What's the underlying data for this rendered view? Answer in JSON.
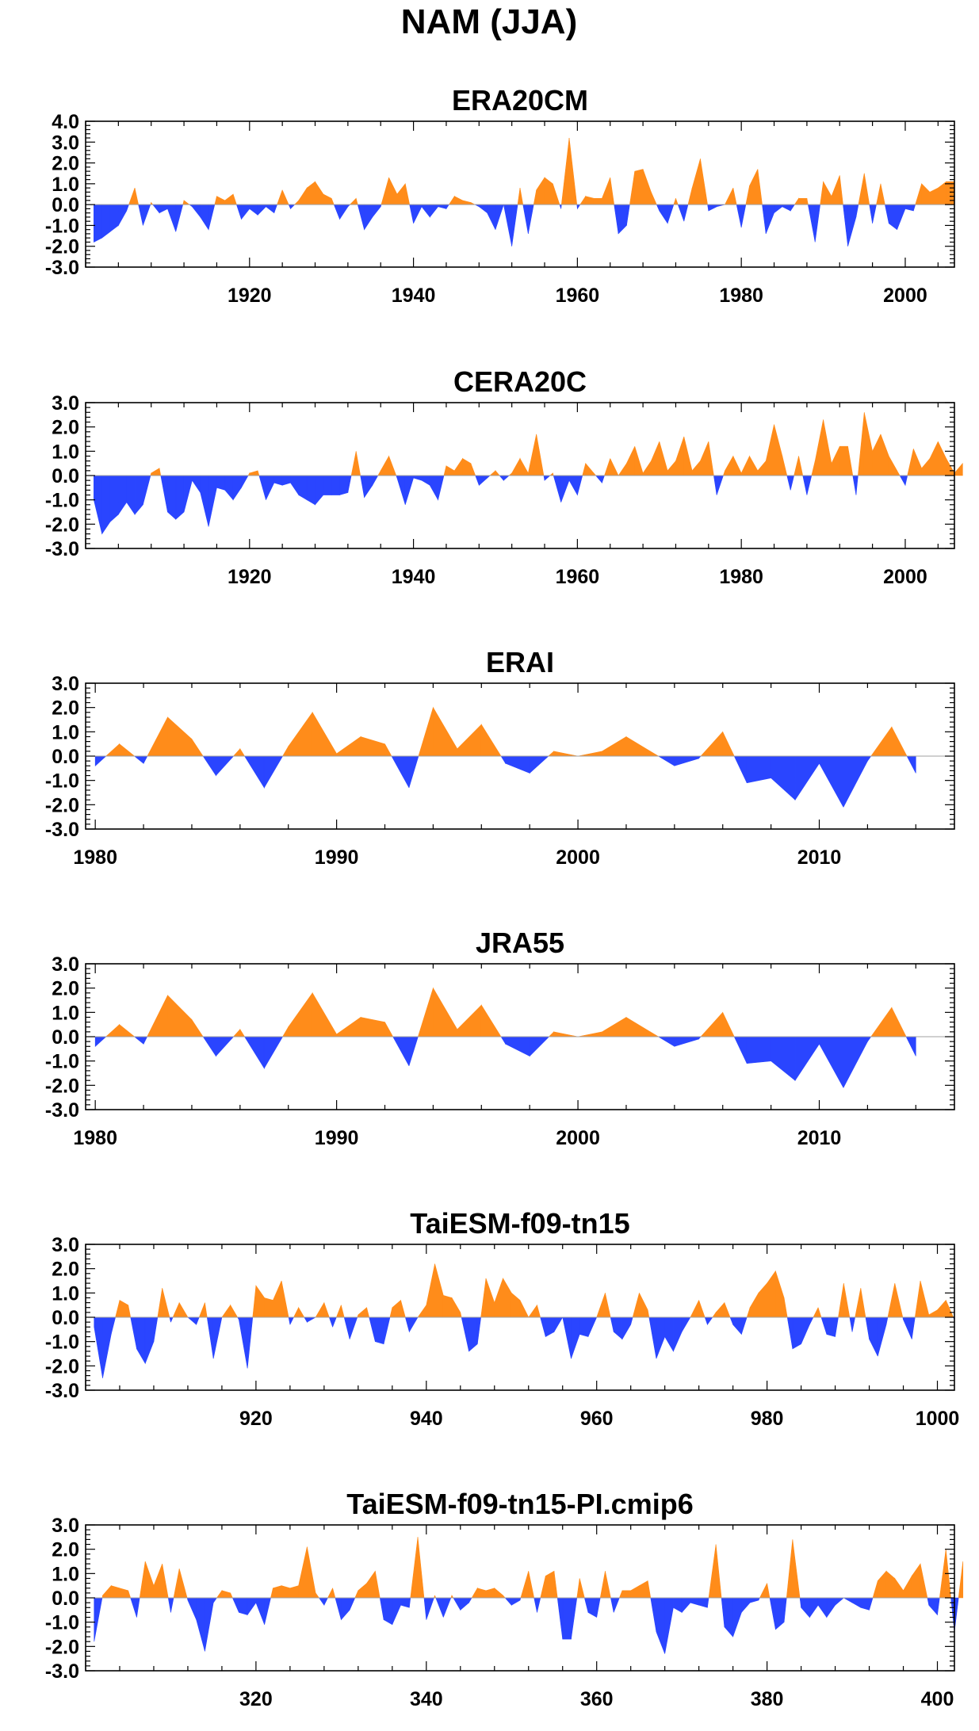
{
  "figure_title": "NAM (JJA)",
  "colors": {
    "positive": "#ff8c1a",
    "negative": "#2a45ff",
    "axis": "#000000"
  },
  "chart_data": [
    {
      "type": "area",
      "title": "ERA20CM",
      "xlabel": "",
      "ylabel": "",
      "xlim": [
        1900,
        2006
      ],
      "ylim": [
        -3.0,
        4.0
      ],
      "yticks": [
        -3.0,
        -2.0,
        -1.0,
        0.0,
        1.0,
        2.0,
        3.0,
        4.0
      ],
      "ytick_labels": [
        "-3.0",
        "-2.0",
        "-1.0",
        "0.0",
        "1.0",
        "2.0",
        "3.0",
        "4.0"
      ],
      "xticks": [
        1920,
        1940,
        1960,
        1980,
        2000
      ],
      "xtick_labels": [
        "1920",
        "1940",
        "1960",
        "1980",
        "2000"
      ],
      "x_start": 1901,
      "values": [
        -1.8,
        -1.6,
        -1.3,
        -1.0,
        -0.3,
        0.8,
        -1.0,
        0.1,
        -0.4,
        -0.2,
        -1.3,
        0.2,
        -0.1,
        -0.6,
        -1.2,
        0.4,
        0.2,
        0.5,
        -0.7,
        -0.2,
        -0.5,
        -0.1,
        -0.4,
        0.7,
        -0.2,
        0.2,
        0.8,
        1.1,
        0.5,
        0.3,
        -0.7,
        -0.1,
        0.3,
        -1.2,
        -0.6,
        -0.1,
        1.3,
        0.5,
        1.0,
        -0.9,
        -0.1,
        -0.6,
        -0.1,
        -0.2,
        0.4,
        0.2,
        0.1,
        -0.1,
        -0.4,
        -1.2,
        0.0,
        -2.0,
        0.8,
        -1.4,
        0.7,
        1.3,
        1.0,
        -0.2,
        3.2,
        -0.2,
        0.4,
        0.3,
        0.3,
        1.3,
        -1.4,
        -1.0,
        1.6,
        1.7,
        0.6,
        -0.3,
        -0.9,
        0.3,
        -0.8,
        0.8,
        2.2,
        -0.3,
        -0.1,
        0.0,
        0.8,
        -1.1,
        0.9,
        1.7,
        -1.4,
        -0.4,
        -0.1,
        -0.3,
        0.3,
        0.3,
        -1.8,
        1.1,
        0.4,
        1.4,
        -2.0,
        -0.6,
        1.5,
        -0.9,
        1.0,
        -0.9,
        -1.2,
        -0.2,
        -0.3,
        1.0,
        0.6,
        0.8,
        1.1,
        1.1
      ]
    },
    {
      "type": "area",
      "title": "CERA20C",
      "xlabel": "",
      "ylabel": "",
      "xlim": [
        1900,
        2006
      ],
      "ylim": [
        -3.0,
        3.0
      ],
      "yticks": [
        -3.0,
        -2.0,
        -1.0,
        0.0,
        1.0,
        2.0,
        3.0
      ],
      "ytick_labels": [
        "-3.0",
        "-2.0",
        "-1.0",
        "0.0",
        "1.0",
        "2.0",
        "3.0"
      ],
      "xticks": [
        1920,
        1940,
        1960,
        1980,
        2000
      ],
      "xtick_labels": [
        "1920",
        "1940",
        "1960",
        "1980",
        "2000"
      ],
      "x_start": 1901,
      "values": [
        -1.0,
        -2.4,
        -1.9,
        -1.6,
        -1.1,
        -1.6,
        -1.2,
        0.1,
        0.3,
        -1.5,
        -1.8,
        -1.5,
        -0.2,
        -0.7,
        -2.1,
        -0.5,
        -0.6,
        -1.0,
        -0.5,
        0.1,
        0.2,
        -1.0,
        -0.3,
        -0.4,
        -0.3,
        -0.8,
        -1.0,
        -1.2,
        -0.8,
        -0.8,
        -0.8,
        -0.7,
        1.0,
        -0.9,
        -0.4,
        0.2,
        0.8,
        -0.1,
        -1.2,
        -0.1,
        -0.2,
        -0.4,
        -1.0,
        0.4,
        0.2,
        0.7,
        0.5,
        -0.4,
        -0.1,
        0.2,
        -0.2,
        0.1,
        0.7,
        0.1,
        1.7,
        -0.2,
        0.1,
        -1.1,
        -0.2,
        -0.8,
        0.5,
        0.1,
        -0.3,
        0.7,
        0.0,
        0.5,
        1.2,
        0.1,
        0.6,
        1.4,
        0.2,
        0.6,
        1.6,
        0.2,
        0.6,
        1.4,
        -0.8,
        0.2,
        0.8,
        0.1,
        0.8,
        0.2,
        0.6,
        2.1,
        0.8,
        -0.6,
        0.8,
        -0.8,
        0.6,
        2.3,
        0.5,
        1.2,
        1.2,
        -0.8,
        2.6,
        1.0,
        1.7,
        0.8,
        0.2,
        -0.4,
        1.1,
        0.3,
        0.7,
        1.4,
        0.7,
        0.1,
        0.5
      ]
    },
    {
      "type": "area",
      "title": "ERAI",
      "xlabel": "",
      "ylabel": "",
      "xlim": [
        1979.6,
        2015.6
      ],
      "ylim": [
        -3.0,
        3.0
      ],
      "yticks": [
        -3.0,
        -2.0,
        -1.0,
        0.0,
        1.0,
        2.0,
        3.0
      ],
      "ytick_labels": [
        "-3.0",
        "-2.0",
        "-1.0",
        "0.0",
        "1.0",
        "2.0",
        "3.0"
      ],
      "xticks": [
        1980,
        1990,
        2000,
        2010
      ],
      "xtick_labels": [
        "1980",
        "1990",
        "2000",
        "2010"
      ],
      "x_start": 1980,
      "values": [
        -0.4,
        0.5,
        -0.3,
        1.6,
        0.7,
        -0.8,
        0.3,
        -1.3,
        0.4,
        1.8,
        0.1,
        0.8,
        0.5,
        -1.3,
        2.0,
        0.3,
        1.3,
        -0.3,
        -0.7,
        0.2,
        0.0,
        0.2,
        0.8,
        0.2,
        -0.4,
        -0.1,
        1.0,
        -1.1,
        -0.9,
        -1.8,
        -0.3,
        -2.1,
        -0.2,
        1.2,
        -0.7
      ]
    },
    {
      "type": "area",
      "title": "JRA55",
      "xlabel": "",
      "ylabel": "",
      "xlim": [
        1979.6,
        2015.6
      ],
      "ylim": [
        -3.0,
        3.0
      ],
      "yticks": [
        -3.0,
        -2.0,
        -1.0,
        0.0,
        1.0,
        2.0,
        3.0
      ],
      "ytick_labels": [
        "-3.0",
        "-2.0",
        "-1.0",
        "0.0",
        "1.0",
        "2.0",
        "3.0"
      ],
      "xticks": [
        1980,
        1990,
        2000,
        2010
      ],
      "xtick_labels": [
        "1980",
        "1990",
        "2000",
        "2010"
      ],
      "x_start": 1980,
      "values": [
        -0.4,
        0.5,
        -0.3,
        1.7,
        0.7,
        -0.8,
        0.3,
        -1.3,
        0.4,
        1.8,
        0.1,
        0.8,
        0.6,
        -1.2,
        2.0,
        0.3,
        1.3,
        -0.3,
        -0.8,
        0.2,
        0.0,
        0.2,
        0.8,
        0.2,
        -0.4,
        -0.1,
        1.0,
        -1.1,
        -1.0,
        -1.8,
        -0.3,
        -2.1,
        -0.2,
        1.2,
        -0.8
      ]
    },
    {
      "type": "area",
      "title": "TaiESM-f09-tn15",
      "xlabel": "",
      "ylabel": "",
      "xlim": [
        900,
        1002
      ],
      "ylim": [
        -3.0,
        3.0
      ],
      "yticks": [
        -3.0,
        -2.0,
        -1.0,
        0.0,
        1.0,
        2.0,
        3.0
      ],
      "ytick_labels": [
        "-3.0",
        "-2.0",
        "-1.0",
        "0.0",
        "1.0",
        "2.0",
        "3.0"
      ],
      "xticks": [
        920,
        940,
        960,
        980,
        1000
      ],
      "xtick_labels": [
        "920",
        "940",
        "960",
        "980",
        "1000"
      ],
      "x_start": 901,
      "values": [
        -0.4,
        -2.5,
        -0.7,
        0.7,
        0.5,
        -1.3,
        -1.9,
        -1.0,
        1.2,
        -0.2,
        0.6,
        0.0,
        -0.3,
        0.6,
        -1.7,
        0.0,
        0.5,
        -0.1,
        -2.1,
        1.3,
        0.8,
        0.7,
        1.5,
        -0.3,
        0.4,
        -0.2,
        0.0,
        0.6,
        -0.4,
        0.5,
        -0.9,
        0.1,
        0.4,
        -1.0,
        -1.1,
        0.4,
        0.7,
        -0.6,
        0.0,
        0.5,
        2.2,
        0.9,
        0.8,
        0.2,
        -1.4,
        -1.1,
        1.6,
        0.6,
        1.6,
        1.0,
        0.7,
        0.0,
        0.5,
        -0.8,
        -0.6,
        0.0,
        -1.7,
        -0.7,
        -0.8,
        0.0,
        1.0,
        -0.6,
        -0.9,
        -0.3,
        1.0,
        0.3,
        -1.7,
        -0.8,
        -1.4,
        -0.6,
        0.0,
        0.7,
        -0.3,
        0.2,
        0.6,
        -0.3,
        -0.7,
        0.4,
        1.0,
        1.4,
        1.9,
        0.8,
        -1.3,
        -1.1,
        -0.3,
        0.4,
        -0.7,
        -0.8,
        1.4,
        -0.6,
        1.2,
        -0.9,
        -1.6,
        -0.3,
        1.4,
        -0.1,
        -0.9,
        1.5,
        0.1,
        0.3,
        0.7,
        -0.1
      ]
    },
    {
      "type": "area",
      "title": "TaiESM-f09-tn15-PI.cmip6",
      "xlabel": "",
      "ylabel": "",
      "xlim": [
        300,
        402
      ],
      "ylim": [
        -3.0,
        3.0
      ],
      "yticks": [
        -3.0,
        -2.0,
        -1.0,
        0.0,
        1.0,
        2.0,
        3.0
      ],
      "ytick_labels": [
        "-3.0",
        "-2.0",
        "-1.0",
        "0.0",
        "1.0",
        "2.0",
        "3.0"
      ],
      "xticks": [
        320,
        340,
        360,
        380,
        400
      ],
      "xtick_labels": [
        "320",
        "340",
        "360",
        "380",
        "400"
      ],
      "x_start": 301,
      "values": [
        -1.8,
        0.1,
        0.5,
        0.4,
        0.3,
        -0.8,
        1.5,
        0.5,
        1.4,
        -0.6,
        1.2,
        -0.1,
        -0.9,
        -2.2,
        -0.2,
        0.3,
        0.2,
        -0.6,
        -0.7,
        -0.2,
        -1.1,
        0.4,
        0.5,
        0.4,
        0.5,
        2.1,
        0.2,
        -0.3,
        0.4,
        -0.9,
        -0.5,
        0.3,
        0.6,
        1.1,
        -0.9,
        -1.1,
        -0.3,
        -0.4,
        2.5,
        -0.9,
        0.1,
        -0.8,
        0.1,
        -0.5,
        -0.2,
        0.4,
        0.3,
        0.4,
        0.1,
        -0.3,
        -0.1,
        1.1,
        -0.6,
        0.9,
        1.1,
        -1.7,
        -1.7,
        0.8,
        -0.6,
        -0.8,
        1.1,
        -0.6,
        0.3,
        0.3,
        0.5,
        0.7,
        -1.4,
        -2.3,
        -0.4,
        -0.6,
        -0.2,
        -0.3,
        -0.4,
        2.2,
        -1.2,
        -1.6,
        -0.6,
        -0.2,
        -0.1,
        0.6,
        -1.3,
        -1.0,
        2.4,
        -0.4,
        -0.8,
        -0.3,
        -0.8,
        -0.3,
        0.0,
        -0.2,
        -0.4,
        -0.5,
        0.7,
        1.1,
        0.8,
        0.3,
        0.9,
        1.4,
        -0.3,
        -0.7,
        2.0,
        -1.4,
        1.5
      ]
    }
  ]
}
